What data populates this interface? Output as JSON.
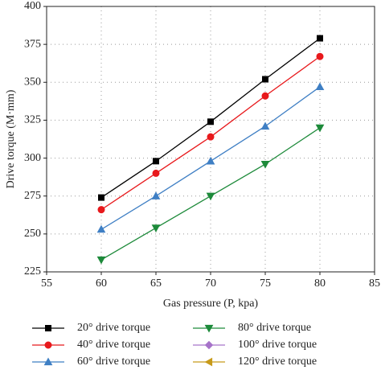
{
  "chart_data": {
    "type": "line",
    "x_label": "Gas pressure (P, kpa)",
    "y_label": "Drive torque (M·mm)",
    "x": [
      60,
      65,
      70,
      75,
      80
    ],
    "xlim": [
      55,
      85
    ],
    "xticks": [
      55,
      60,
      65,
      70,
      75,
      80,
      85
    ],
    "ylim": [
      225,
      400
    ],
    "yticks": [
      225,
      250,
      275,
      300,
      325,
      350,
      375,
      400
    ],
    "grid": true,
    "series": [
      {
        "name": "20° drive torque",
        "color": "#000000",
        "marker": "square",
        "values": [
          274,
          298,
          324,
          352,
          379
        ]
      },
      {
        "name": "40° drive torque",
        "color": "#e8191c",
        "marker": "circle",
        "values": [
          266,
          290,
          314,
          341,
          367
        ]
      },
      {
        "name": "60° drive torque",
        "color": "#3f7fc4",
        "marker": "triangle-up",
        "values": [
          253,
          275,
          298,
          321,
          347
        ]
      },
      {
        "name": "80° drive torque",
        "color": "#1d8a3a",
        "marker": "triangle-down",
        "values": [
          233,
          254,
          275,
          296,
          320
        ]
      },
      {
        "name": "100° drive torque",
        "color": "#a673c9",
        "marker": "diamond",
        "values": [
          null,
          null,
          null,
          null,
          null
        ]
      },
      {
        "name": "120° drive torque",
        "color": "#c79a1a",
        "marker": "triangle-left",
        "values": [
          null,
          null,
          null,
          null,
          null
        ]
      }
    ]
  }
}
